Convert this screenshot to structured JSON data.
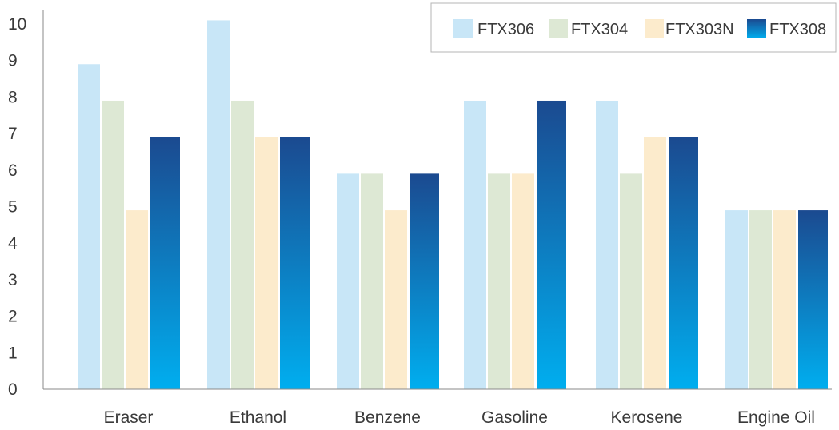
{
  "chart_data": {
    "type": "bar",
    "title": "",
    "xlabel": "",
    "ylabel": "",
    "ylim": [
      0,
      10
    ],
    "yticks": [
      "0",
      "1",
      "2",
      "3",
      "4",
      "5",
      "6",
      "7",
      "8",
      "9",
      "10"
    ],
    "categories": [
      "Eraser",
      "Ethanol",
      "Benzene",
      "Gasoline",
      "Kerosene",
      "Engine Oil"
    ],
    "series": [
      {
        "name": "FTX306",
        "color": "#c8e6f7",
        "values": [
          8.9,
          10.1,
          5.9,
          7.9,
          7.9,
          4.9
        ]
      },
      {
        "name": "FTX304",
        "color": "#dde8d4",
        "values": [
          7.9,
          7.9,
          5.9,
          5.9,
          5.9,
          4.9
        ]
      },
      {
        "name": "FTX303N",
        "color": "#fcebcc",
        "values": [
          4.9,
          6.9,
          4.9,
          5.9,
          6.9,
          4.9
        ]
      },
      {
        "name": "FTX308",
        "color_top": "#1b4a90",
        "color_bottom": "#00aeef",
        "values": [
          6.9,
          6.9,
          5.9,
          7.9,
          6.9,
          4.9
        ]
      }
    ],
    "grid": false,
    "legend_position": "top-right"
  }
}
